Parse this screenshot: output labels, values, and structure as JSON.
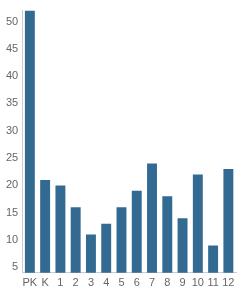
{
  "chart_data": {
    "type": "bar",
    "categories": [
      "PK",
      "K",
      "1",
      "2",
      "3",
      "4",
      "5",
      "6",
      "7",
      "8",
      "9",
      "10",
      "11",
      "12"
    ],
    "values": [
      52,
      21,
      20,
      16,
      11,
      13,
      16,
      19,
      24,
      18,
      14,
      22,
      9,
      23
    ],
    "color": "#336a91",
    "ylim": [
      4,
      52
    ],
    "yticks": [
      5,
      10,
      15,
      20,
      25,
      30,
      35,
      40,
      45,
      50
    ],
    "grid": false
  }
}
